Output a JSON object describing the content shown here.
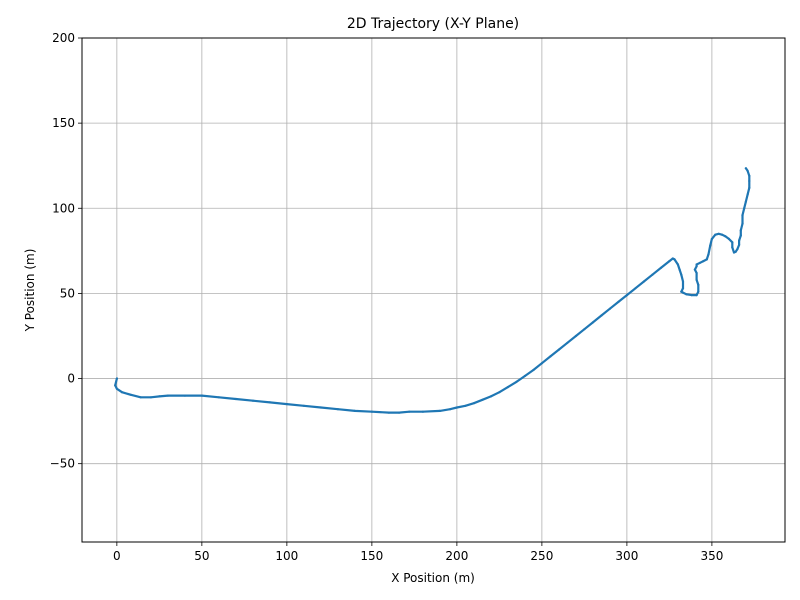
{
  "chart_data": {
    "type": "line",
    "title": "2D Trajectory (X-Y Plane)",
    "xlabel": "X Position (m)",
    "ylabel": "Y Position (m)",
    "xlim": [
      -20.5,
      393
    ],
    "ylim": [
      -96,
      200
    ],
    "xticks": [
      0,
      50,
      100,
      150,
      200,
      250,
      300,
      350
    ],
    "xtick_labels": [
      "0",
      "50",
      "100",
      "150",
      "200",
      "250",
      "300",
      "350"
    ],
    "yticks": [
      -50,
      0,
      50,
      100,
      150,
      200
    ],
    "ytick_labels": [
      "−50",
      "0",
      "50",
      "100",
      "150",
      "200"
    ],
    "grid": true,
    "line_color": "#1f77b4",
    "series": [
      {
        "x": [
          0,
          -1,
          0,
          3,
          8,
          14,
          20,
          25,
          30,
          40,
          50,
          60,
          70,
          80,
          90,
          100,
          110,
          120,
          130,
          140,
          150,
          160,
          166,
          172,
          180,
          190,
          196,
          200,
          205,
          210,
          215,
          220,
          225,
          230,
          235,
          240,
          245,
          250,
          255,
          260,
          265,
          270,
          275,
          280,
          285,
          290,
          295,
          300,
          305,
          310,
          315,
          320,
          325,
          327,
          328,
          330,
          331,
          332,
          333,
          333,
          332,
          333,
          335,
          338,
          341,
          342,
          342,
          341,
          341,
          340,
          341,
          341,
          343,
          345,
          347,
          348,
          349,
          350,
          352,
          354,
          356,
          358,
          360,
          362,
          362,
          363,
          364,
          365,
          366,
          366,
          367,
          367,
          368,
          368,
          369,
          370,
          371,
          372,
          372,
          372,
          371,
          370
        ],
        "y": [
          0,
          -4,
          -6,
          -8,
          -9.5,
          -11,
          -11,
          -10.5,
          -10,
          -10,
          -10,
          -11,
          -12,
          -13,
          -14,
          -15,
          -16,
          -17,
          -18,
          -19,
          -19.5,
          -20,
          -20,
          -19.5,
          -19.5,
          -19,
          -18,
          -17,
          -16,
          -14.5,
          -12.5,
          -10.5,
          -8,
          -5,
          -2,
          1.5,
          5,
          9,
          13,
          17,
          21,
          25,
          29,
          33,
          37,
          41,
          45,
          49,
          53,
          57,
          61,
          65,
          69,
          70.5,
          70,
          67,
          64,
          61,
          57,
          53,
          51,
          50.5,
          49.5,
          49,
          49,
          51,
          55,
          58,
          62,
          64,
          66,
          67,
          68,
          69,
          70,
          73,
          78,
          82,
          84.5,
          85,
          84.5,
          83.5,
          82,
          80,
          77,
          74,
          74.5,
          76,
          78.5,
          81,
          84,
          87,
          91,
          96,
          100,
          104,
          108,
          112,
          116,
          119,
          122,
          123.5
        ]
      }
    ]
  }
}
